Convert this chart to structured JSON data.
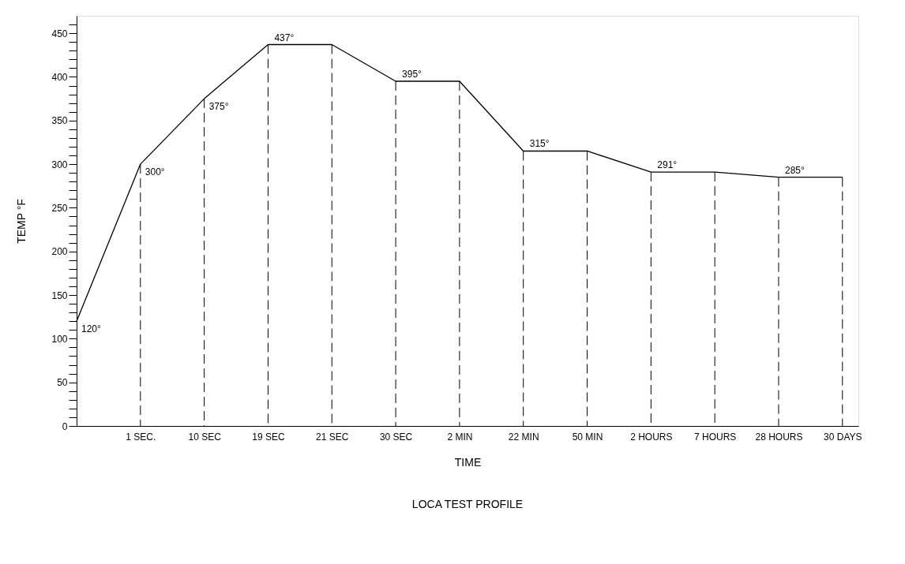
{
  "chart_data": {
    "type": "line",
    "title": "LOCA TEST PROFILE",
    "xlabel": "TIME",
    "ylabel": "TEMP °F",
    "categories": [
      null,
      "1 SEC.",
      "10 SEC",
      "19 SEC",
      "21 SEC",
      "30 SEC",
      "2 MIN",
      "22 MIN",
      "50 MIN",
      "2 HOURS",
      "7 HOURS",
      "28 HOURS",
      "30 DAYS"
    ],
    "series": [
      {
        "color": "#000000",
        "values": [
          120,
          300,
          375,
          437,
          437,
          395,
          395,
          315,
          315,
          291,
          291,
          285,
          285
        ],
        "value_labels": [
          "120°",
          "300°",
          "375°",
          "437°",
          null,
          "395°",
          null,
          "315°",
          null,
          "291°",
          null,
          "285°",
          null
        ]
      }
    ],
    "ylim": [
      0,
      470
    ],
    "yticks": [
      0,
      {
        "value": 10,
        "label": null
      },
      {
        "value": 20,
        "label": null
      },
      {
        "value": 30,
        "label": null
      },
      {
        "value": 40,
        "label": null
      },
      50,
      {
        "value": 60,
        "label": null
      },
      {
        "value": 70,
        "label": null
      },
      {
        "value": 80,
        "label": null
      },
      {
        "value": 90,
        "label": null
      },
      100,
      {
        "value": 110,
        "label": null
      },
      {
        "value": 120,
        "label": null
      },
      {
        "value": 130,
        "label": null
      },
      {
        "value": 140,
        "label": null
      },
      150,
      {
        "value": 160,
        "label": null
      },
      {
        "value": 170,
        "label": null
      },
      {
        "value": 180,
        "label": null
      },
      {
        "value": 190,
        "label": null
      },
      200,
      {
        "value": 210,
        "label": null
      },
      {
        "value": 220,
        "label": null
      },
      {
        "value": 230,
        "label": null
      },
      {
        "value": 240,
        "label": null
      },
      250,
      {
        "value": 260,
        "label": null
      },
      {
        "value": 270,
        "label": null
      },
      {
        "value": 280,
        "label": null
      },
      {
        "value": 290,
        "label": null
      },
      300,
      {
        "value": 310,
        "label": null
      },
      {
        "value": 320,
        "label": null
      },
      {
        "value": 330,
        "label": null
      },
      {
        "value": 340,
        "label": null
      },
      350,
      {
        "value": 360,
        "label": null
      },
      {
        "value": 370,
        "label": null
      },
      {
        "value": 380,
        "label": null
      },
      {
        "value": 390,
        "label": null
      },
      400,
      {
        "value": 410,
        "label": null
      },
      {
        "value": 420,
        "label": null
      },
      {
        "value": 430,
        "label": null
      },
      {
        "value": 440,
        "label": null
      },
      450,
      {
        "value": 460,
        "label": null
      }
    ],
    "ref_lines": [
      {
        "axis": "x",
        "value": "1 SEC.",
        "line_style": "dashed"
      },
      {
        "axis": "x",
        "value": "10 SEC",
        "line_style": "dashed"
      },
      {
        "axis": "x",
        "value": "19 SEC",
        "line_style": "dashed"
      },
      {
        "axis": "x",
        "value": "21 SEC",
        "line_style": "dashed"
      },
      {
        "axis": "x",
        "value": "30 SEC",
        "line_style": "dashed"
      },
      {
        "axis": "x",
        "value": "2 MIN",
        "line_style": "dashed"
      },
      {
        "axis": "x",
        "value": "22 MIN",
        "line_style": "dashed"
      },
      {
        "axis": "x",
        "value": "50 MIN",
        "line_style": "dashed"
      },
      {
        "axis": "x",
        "value": "2 HOURS",
        "line_style": "dashed"
      },
      {
        "axis": "x",
        "value": "7 HOURS",
        "line_style": "dashed"
      },
      {
        "axis": "x",
        "value": "28 HOURS",
        "line_style": "dashed"
      },
      {
        "axis": "x",
        "value": "30 DAYS",
        "line_style": "dashed"
      }
    ],
    "grid": false,
    "marker": "none",
    "line_style": "solid"
  }
}
